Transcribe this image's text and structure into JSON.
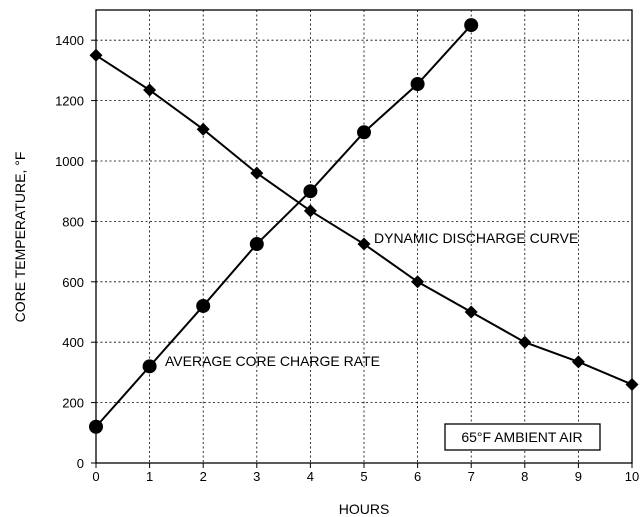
{
  "chart_data": {
    "type": "line",
    "xlabel": "HOURS",
    "ylabel": "CORE TEMPERATURE, °F",
    "xlim": [
      0,
      10
    ],
    "ylim": [
      0,
      1500
    ],
    "x_ticks": [
      0,
      1,
      2,
      3,
      4,
      5,
      6,
      7,
      8,
      9,
      10
    ],
    "y_ticks": [
      0,
      200,
      400,
      600,
      800,
      1000,
      1200,
      1400
    ],
    "grid": true,
    "series": [
      {
        "name": "AVERAGE CORE CHARGE RATE",
        "marker": "circle",
        "x": [
          0,
          1,
          2,
          3,
          4,
          5,
          6,
          7
        ],
        "y": [
          120,
          320,
          520,
          725,
          900,
          1095,
          1255,
          1450
        ]
      },
      {
        "name": "DYNAMIC DISCHARGE CURVE",
        "marker": "diamond",
        "x": [
          0,
          1,
          2,
          3,
          4,
          5,
          6,
          7,
          8,
          9,
          10
        ],
        "y": [
          1350,
          1235,
          1105,
          960,
          835,
          725,
          600,
          500,
          400,
          335,
          260
        ]
      }
    ],
    "annotations": {
      "ambient": "65°F AMBIENT AIR"
    },
    "colors": {
      "line": "#000000",
      "background": "#ffffff"
    }
  }
}
